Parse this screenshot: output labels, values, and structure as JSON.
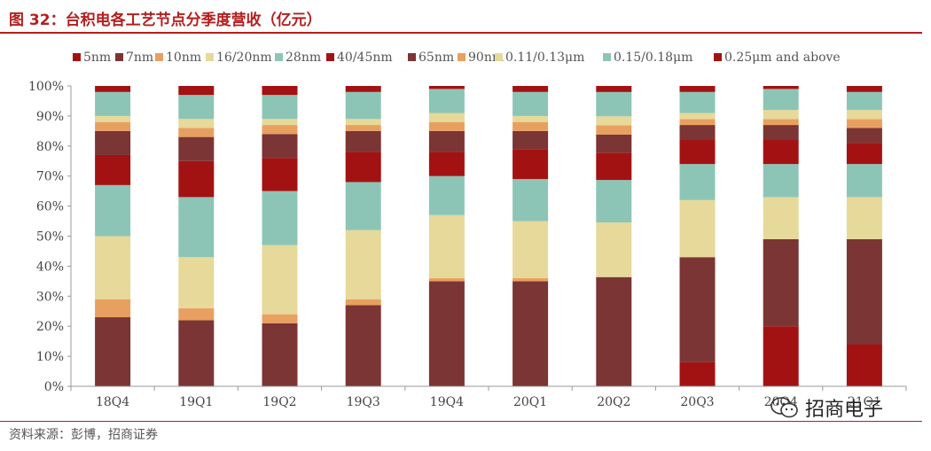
{
  "header": {
    "title": "图 32：台积电各工艺节点分季度营收（亿元）"
  },
  "footer": {
    "source": "资料来源：彭博，招商证券"
  },
  "watermark": {
    "text": "招商电子",
    "icon": "wechat-icon"
  },
  "chart_data": {
    "type": "bar",
    "stacked": true,
    "percent": true,
    "title": "台积电各工艺节点分季度营收（亿元）",
    "categories": [
      "18Q4",
      "19Q1",
      "19Q2",
      "19Q3",
      "19Q4",
      "20Q1",
      "20Q2",
      "20Q3",
      "20Q4",
      "21Q1"
    ],
    "y_ticks": [
      "0%",
      "10%",
      "20%",
      "30%",
      "40%",
      "50%",
      "60%",
      "70%",
      "80%",
      "90%",
      "100%"
    ],
    "ylim": [
      0,
      100
    ],
    "legend_position": "top",
    "series": [
      {
        "name": "5nm",
        "color": "#a31212",
        "values": [
          0,
          0,
          0,
          0,
          0,
          0,
          0,
          8,
          20,
          14
        ]
      },
      {
        "name": "7nm",
        "color": "#7b3534",
        "values": [
          23,
          22,
          21,
          27,
          35,
          35,
          36,
          35,
          29,
          35
        ]
      },
      {
        "name": "10nm",
        "color": "#e8a060",
        "values": [
          6,
          4,
          3,
          2,
          1,
          1,
          0,
          0,
          0,
          0
        ]
      },
      {
        "name": "16/20nm",
        "color": "#e6d99a",
        "values": [
          21,
          17,
          23,
          23,
          21,
          19,
          18,
          19,
          14,
          14
        ]
      },
      {
        "name": "28nm",
        "color": "#8cc5b6",
        "values": [
          17,
          20,
          18,
          16,
          13,
          14,
          14,
          12,
          11,
          11
        ]
      },
      {
        "name": "40/45nm",
        "color": "#a31212",
        "values": [
          10,
          12,
          11,
          10,
          8,
          10,
          9,
          8,
          8,
          7
        ]
      },
      {
        "name": "65nm",
        "color": "#7b3534",
        "values": [
          8,
          8,
          8,
          7,
          7,
          6,
          6,
          5,
          5,
          5
        ]
      },
      {
        "name": "90nm",
        "color": "#e8a060",
        "values": [
          3,
          3,
          3,
          2,
          3,
          3,
          3,
          2,
          2,
          3
        ]
      },
      {
        "name": "0.11/0.13μm",
        "color": "#e6d99a",
        "values": [
          2,
          3,
          2,
          2,
          3,
          2,
          3,
          2,
          3,
          3
        ]
      },
      {
        "name": "0.15/0.18μm",
        "color": "#8cc5b6",
        "values": [
          8,
          8,
          8,
          9,
          8,
          8,
          8,
          7,
          7,
          6
        ]
      },
      {
        "name": "0.25μm and above",
        "color": "#a31212",
        "values": [
          2,
          3,
          3,
          2,
          1,
          2,
          2,
          2,
          1,
          2
        ]
      }
    ],
    "legend_labels": [
      "5nm",
      "7nm",
      "10nm",
      "16/20nm",
      "28nm",
      "40/45nm",
      "65nm",
      "90nm",
      "0.11/0.13μm",
      "0.15/0.18μm",
      "0.25μm and above"
    ]
  }
}
